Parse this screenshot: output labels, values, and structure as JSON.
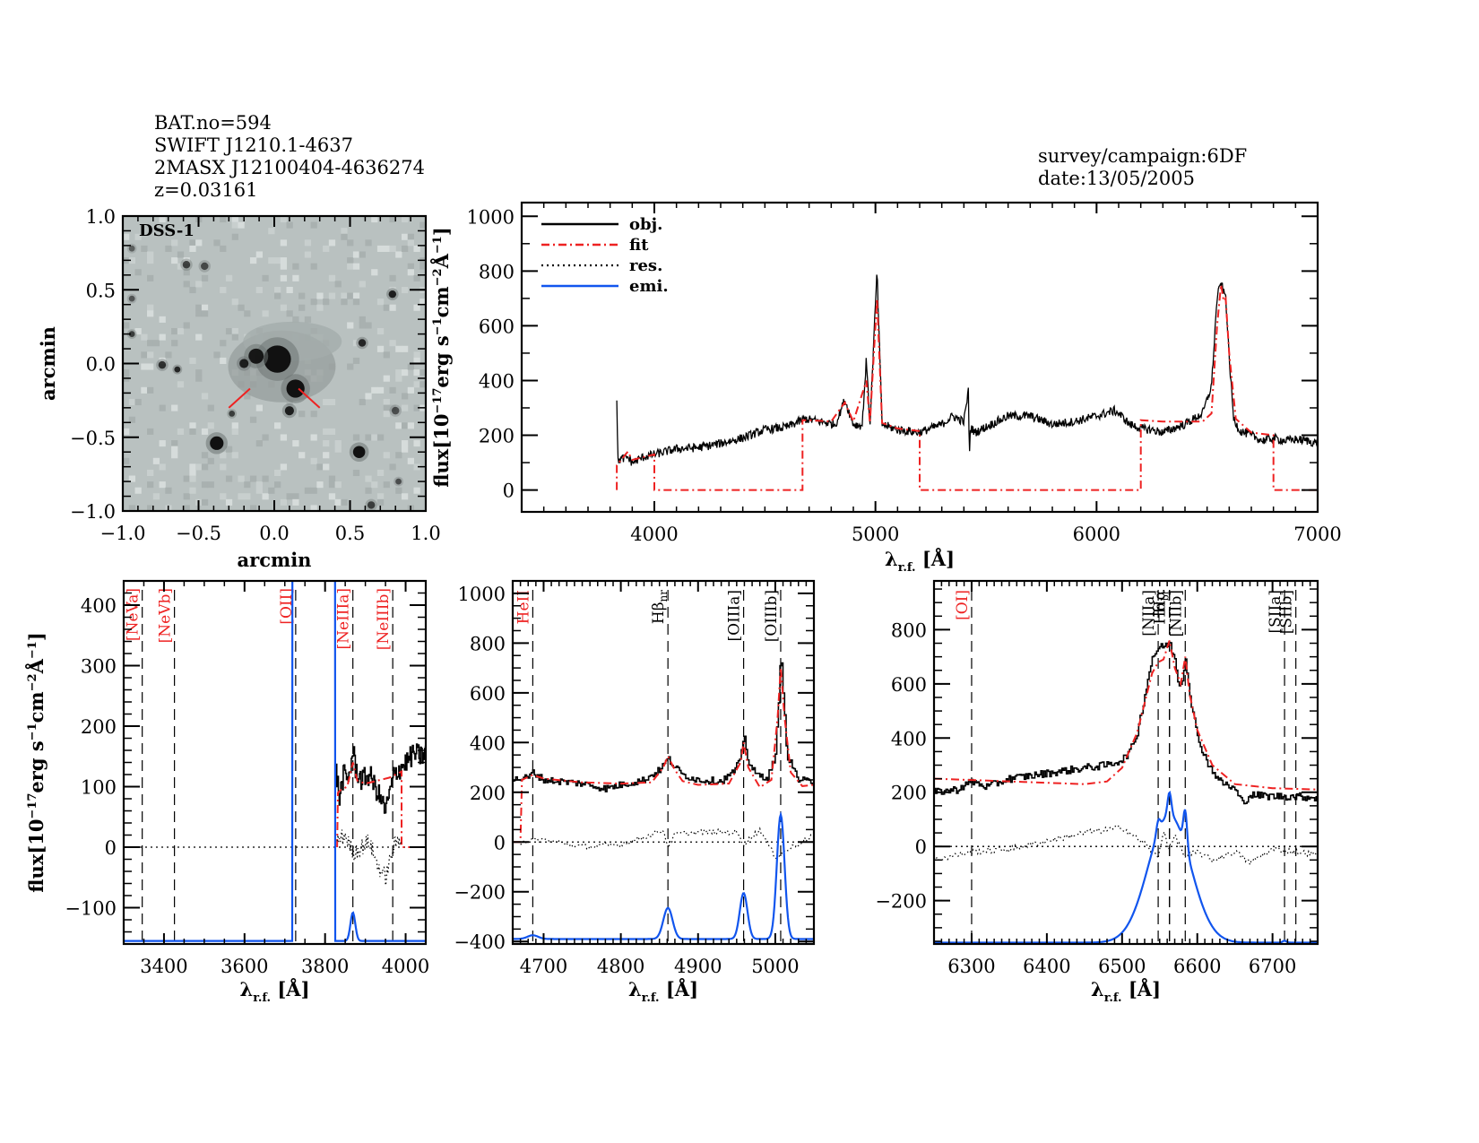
{
  "header": {
    "lines": [
      "BAT.no=594",
      "SWIFT J1210.1-4637",
      "2MASX J12100404-4636274",
      "z=0.03161"
    ],
    "survey": "survey/campaign:6DF",
    "date": "date:13/05/2005"
  },
  "colors": {
    "obj": "#000000",
    "fit": "#ee2222",
    "res": "#000000",
    "emi": "#1155ee",
    "image_bg": "#b9c1c0",
    "marker": "#ee2222"
  },
  "chart_data": [
    {
      "id": "dss-image",
      "type": "heatmap",
      "title": "DSS-1",
      "xlabel": "arcmin",
      "ylabel": "arcmin",
      "xlim": [
        -1.0,
        1.0
      ],
      "ylim": [
        -1.0,
        1.0
      ],
      "xticks": [
        "-1.0",
        "-0.5",
        "0.0",
        "0.5",
        "1.0"
      ],
      "yticks": [
        "-1.0",
        "-0.5",
        "0.0",
        "0.5",
        "1.0"
      ],
      "sources": [
        {
          "x": 0.02,
          "y": 0.03,
          "r": 0.09,
          "darkness": 1.0
        },
        {
          "x": -0.12,
          "y": 0.05,
          "r": 0.05,
          "darkness": 0.95
        },
        {
          "x": -0.2,
          "y": -0.0,
          "r": 0.03,
          "darkness": 0.9
        },
        {
          "x": 0.14,
          "y": -0.17,
          "r": 0.06,
          "darkness": 1.0
        },
        {
          "x": 0.1,
          "y": -0.32,
          "r": 0.03,
          "darkness": 0.9
        },
        {
          "x": -0.38,
          "y": -0.54,
          "r": 0.045,
          "darkness": 1.0
        },
        {
          "x": 0.56,
          "y": -0.6,
          "r": 0.04,
          "darkness": 1.0
        },
        {
          "x": 0.78,
          "y": 0.47,
          "r": 0.025,
          "darkness": 0.9
        },
        {
          "x": 0.58,
          "y": 0.14,
          "r": 0.025,
          "darkness": 0.85
        },
        {
          "x": -0.58,
          "y": 0.67,
          "r": 0.025,
          "darkness": 0.7
        },
        {
          "x": -0.46,
          "y": 0.66,
          "r": 0.025,
          "darkness": 0.65
        },
        {
          "x": -0.74,
          "y": -0.01,
          "r": 0.025,
          "darkness": 0.8
        },
        {
          "x": -0.64,
          "y": -0.04,
          "r": 0.02,
          "darkness": 0.85
        },
        {
          "x": -0.28,
          "y": -0.34,
          "r": 0.02,
          "darkness": 0.7
        },
        {
          "x": 0.8,
          "y": -0.32,
          "r": 0.025,
          "darkness": 0.6
        },
        {
          "x": -0.94,
          "y": 0.2,
          "r": 0.02,
          "darkness": 0.7
        },
        {
          "x": -0.94,
          "y": 0.44,
          "r": 0.02,
          "darkness": 0.55
        },
        {
          "x": -0.94,
          "y": 0.78,
          "r": 0.02,
          "darkness": 0.5
        },
        {
          "x": 0.64,
          "y": -0.96,
          "r": 0.025,
          "darkness": 0.7
        },
        {
          "x": 0.82,
          "y": -0.8,
          "r": 0.02,
          "darkness": 0.6
        }
      ],
      "markers": [
        {
          "x1": -0.3,
          "y1": -0.3,
          "x2": -0.16,
          "y2": -0.17
        },
        {
          "x1": 0.16,
          "y1": -0.17,
          "x2": 0.3,
          "y2": -0.3
        }
      ]
    },
    {
      "id": "full-spectrum",
      "type": "line",
      "title": "",
      "xlabel": "λ r.f. [Å]",
      "ylabel": "flux[10^-17 erg s^-1 cm^-2 Å^-1]",
      "xlim": [
        3400,
        7000
      ],
      "ylim": [
        -80,
        1050
      ],
      "xticks": [
        4000,
        5000,
        6000,
        7000
      ],
      "yticks": [
        0,
        200,
        400,
        600,
        800,
        1000
      ],
      "legend": {
        "position": "top-left",
        "entries": [
          "obj.",
          "fit",
          "res.",
          "emi."
        ]
      },
      "series": [
        {
          "name": "obj.",
          "style": "solid",
          "x": [
            3830,
            3835,
            3840,
            3880,
            3900,
            3950,
            4000,
            4100,
            4200,
            4300,
            4400,
            4500,
            4600,
            4680,
            4750,
            4820,
            4861,
            4900,
            4940,
            4959,
            4975,
            5007,
            5030,
            5100,
            5200,
            5300,
            5350,
            5400,
            5420,
            5425,
            5430,
            5450,
            5500,
            5600,
            5700,
            5800,
            5900,
            6000,
            6080,
            6100,
            6150,
            6200,
            6250,
            6300,
            6400,
            6480,
            6520,
            6545,
            6563,
            6575,
            6584,
            6600,
            6620,
            6650,
            6700,
            6750,
            6800,
            6850,
            6900,
            6950,
            7000
          ],
          "y": [
            340,
            100,
            110,
            120,
            100,
            120,
            130,
            150,
            155,
            170,
            190,
            220,
            230,
            260,
            250,
            240,
            330,
            240,
            235,
            480,
            235,
            800,
            240,
            220,
            210,
            240,
            270,
            250,
            360,
            130,
            230,
            210,
            230,
            270,
            270,
            240,
            250,
            270,
            290,
            280,
            240,
            225,
            220,
            210,
            240,
            280,
            380,
            700,
            760,
            720,
            710,
            480,
            260,
            215,
            200,
            180,
            190,
            180,
            185,
            180,
            170
          ]
        },
        {
          "name": "fit",
          "style": "dashdot",
          "x": [
            3830,
            3830,
            3840,
            3880,
            3900,
            4000,
            4000,
            4670,
            4670,
            4700,
            4800,
            4861,
            4900,
            4959,
            4975,
            5007,
            5030,
            5100,
            5200,
            5200,
            6200,
            6200,
            6300,
            6400,
            6480,
            6520,
            6545,
            6563,
            6575,
            6584,
            6600,
            6630,
            6700,
            6800,
            6800,
            7000
          ],
          "y": [
            0,
            90,
            100,
            140,
            110,
            130,
            0,
            0,
            255,
            255,
            250,
            320,
            250,
            400,
            245,
            700,
            245,
            225,
            215,
            0,
            0,
            255,
            250,
            250,
            250,
            280,
            600,
            750,
            690,
            700,
            500,
            260,
            210,
            200,
            0,
            0
          ]
        },
        {
          "name": "res.",
          "style": "dotted",
          "x": [],
          "y": []
        },
        {
          "name": "emi.",
          "style": "solid",
          "x": [],
          "y": []
        }
      ]
    },
    {
      "id": "zoom-oii",
      "type": "line",
      "xlabel": "λ r.f. [Å]",
      "ylabel": "flux[10^-17 erg s^-1 cm^-2 Å^-1]",
      "xlim": [
        3300,
        4050
      ],
      "ylim": [
        -160,
        440
      ],
      "xticks": [
        3400,
        3600,
        3800,
        4000
      ],
      "yticks": [
        -100,
        0,
        100,
        200,
        300,
        400
      ],
      "lines": [
        {
          "label": "[NeVa]",
          "x": 3346,
          "color": "red"
        },
        {
          "label": "[NeVb]",
          "x": 3426,
          "color": "red"
        },
        {
          "label": "[OII]",
          "x": 3727,
          "color": "red"
        },
        {
          "label": "[NeIIIa]",
          "x": 3869,
          "color": "red"
        },
        {
          "label": "[NeIIIb]",
          "x": 3968,
          "color": "red"
        }
      ],
      "series": [
        {
          "name": "obj.",
          "x": [
            3827,
            3835,
            3845,
            3855,
            3865,
            3869,
            3875,
            3890,
            3910,
            3930,
            3950,
            3970,
            3985,
            4000,
            4020,
            4040,
            4050
          ],
          "y": [
            125,
            80,
            120,
            110,
            140,
            160,
            130,
            110,
            120,
            90,
            60,
            120,
            130,
            140,
            155,
            150,
            160
          ]
        },
        {
          "name": "fit",
          "x": [
            3830,
            3832,
            3840,
            3855,
            3869,
            3880,
            3900,
            3930,
            3960,
            3990,
            3990,
            4050
          ],
          "y": [
            0,
            90,
            95,
            100,
            140,
            110,
            105,
            110,
            115,
            125,
            0,
            0
          ]
        },
        {
          "name": "res.",
          "x": [
            3830,
            3850,
            3870,
            3890,
            3910,
            3930,
            3950,
            3970,
            3990
          ],
          "y": [
            10,
            20,
            -10,
            0,
            10,
            -30,
            -50,
            0,
            20
          ]
        },
        {
          "name": "emi.",
          "baseline": -155,
          "components": [
            {
              "center": 3757,
              "peak": 3000,
              "sigma": 45,
              "left": 3720,
              "right": 3825
            },
            {
              "center": 3869,
              "peak": -108,
              "sigma": 6
            }
          ]
        }
      ]
    },
    {
      "id": "zoom-hbeta",
      "type": "line",
      "xlabel": "λ r.f. [Å]",
      "ylabel": "",
      "xlim": [
        4660,
        5050
      ],
      "ylim": [
        -410,
        1050
      ],
      "xticks": [
        4700,
        4800,
        4900,
        5000
      ],
      "yticks": [
        -400,
        -200,
        0,
        200,
        400,
        600,
        800,
        1000
      ],
      "lines": [
        {
          "label": "HeII",
          "x": 4686,
          "color": "red"
        },
        {
          "label": "Hβnr",
          "x": 4861,
          "color": "black"
        },
        {
          "label": "[OIIIa]",
          "x": 4959,
          "color": "black"
        },
        {
          "label": "[OIIIb]",
          "x": 5007,
          "color": "black"
        }
      ],
      "series": [
        {
          "name": "obj.",
          "x": [
            4660,
            4680,
            4686,
            4700,
            4750,
            4780,
            4800,
            4830,
            4850,
            4861,
            4870,
            4880,
            4900,
            4930,
            4945,
            4955,
            4959,
            4965,
            4975,
            4990,
            5000,
            5005,
            5007,
            5010,
            5015,
            5030,
            5050
          ],
          "y": [
            250,
            260,
            280,
            250,
            235,
            215,
            230,
            250,
            290,
            335,
            300,
            270,
            250,
            245,
            280,
            330,
            440,
            320,
            270,
            260,
            350,
            600,
            800,
            600,
            350,
            250,
            240
          ]
        },
        {
          "name": "fit",
          "x": [
            4660,
            4670,
            4672,
            4686,
            4700,
            4750,
            4800,
            4840,
            4855,
            4861,
            4870,
            4880,
            4900,
            4940,
            4955,
            4959,
            4965,
            4980,
            4995,
            5003,
            5007,
            5012,
            5020,
            5035,
            5050
          ],
          "y": [
            0,
            0,
            250,
            270,
            255,
            240,
            235,
            240,
            300,
            345,
            290,
            245,
            230,
            235,
            320,
            400,
            300,
            220,
            250,
            500,
            700,
            500,
            280,
            225,
            230
          ]
        },
        {
          "name": "res.",
          "x": [
            4670,
            4700,
            4750,
            4800,
            4840,
            4855,
            4861,
            4870,
            4900,
            4950,
            4959,
            4980,
            5000,
            5050
          ],
          "y": [
            0,
            10,
            -20,
            -10,
            30,
            50,
            -20,
            30,
            40,
            40,
            -10,
            50,
            -60,
            30
          ]
        },
        {
          "name": "emi.",
          "baseline": -390,
          "components": [
            {
              "center": 4686,
              "peak": -375,
              "sigma": 7
            },
            {
              "center": 4861,
              "peak": -265,
              "sigma": 6
            },
            {
              "center": 4959,
              "peak": -205,
              "sigma": 5
            },
            {
              "center": 5007,
              "peak": 110,
              "sigma": 5
            }
          ]
        }
      ]
    },
    {
      "id": "zoom-halpha",
      "type": "line",
      "xlabel": "λ r.f. [Å]",
      "ylabel": "",
      "xlim": [
        6250,
        6760
      ],
      "ylim": [
        -360,
        980
      ],
      "xticks": [
        6300,
        6400,
        6500,
        6600,
        6700
      ],
      "yticks": [
        -200,
        0,
        200,
        400,
        600,
        800
      ],
      "lines": [
        {
          "label": "[OI]",
          "x": 6300,
          "color": "red"
        },
        {
          "label": "[NIIa]",
          "x": 6548,
          "color": "black"
        },
        {
          "label": "Hα",
          "x": 6563,
          "color": "black"
        },
        {
          "label": "Hαbr",
          "x": 6563,
          "color": "black"
        },
        {
          "label": "[NIIb]",
          "x": 6584,
          "color": "black"
        },
        {
          "label": "[SIIa]",
          "x": 6716,
          "color": "black"
        },
        {
          "label": "[SIIb]",
          "x": 6731,
          "color": "black"
        }
      ],
      "series": [
        {
          "name": "obj.",
          "x": [
            6250,
            6280,
            6300,
            6320,
            6350,
            6400,
            6450,
            6480,
            6500,
            6510,
            6520,
            6530,
            6540,
            6548,
            6555,
            6563,
            6570,
            6575,
            6580,
            6584,
            6590,
            6600,
            6615,
            6630,
            6650,
            6660,
            6670,
            6700,
            6730,
            6760
          ],
          "y": [
            200,
            210,
            240,
            220,
            250,
            270,
            290,
            300,
            320,
            350,
            420,
            560,
            700,
            730,
            740,
            750,
            690,
            600,
            610,
            700,
            560,
            400,
            300,
            240,
            210,
            160,
            190,
            185,
            185,
            180
          ]
        },
        {
          "name": "fit",
          "x": [
            6250,
            6300,
            6400,
            6450,
            6480,
            6500,
            6520,
            6540,
            6548,
            6555,
            6563,
            6570,
            6578,
            6584,
            6590,
            6600,
            6620,
            6650,
            6700,
            6760
          ],
          "y": [
            250,
            245,
            235,
            230,
            240,
            290,
            420,
            640,
            680,
            690,
            760,
            660,
            600,
            700,
            560,
            430,
            300,
            230,
            215,
            210
          ]
        },
        {
          "name": "res.",
          "x": [
            6250,
            6300,
            6350,
            6400,
            6450,
            6500,
            6530,
            6548,
            6555,
            6563,
            6570,
            6584,
            6600,
            6620,
            6650,
            6670,
            6700,
            6730,
            6760
          ],
          "y": [
            -50,
            -20,
            -10,
            20,
            50,
            70,
            10,
            -40,
            60,
            -10,
            40,
            -40,
            -20,
            -50,
            -20,
            -60,
            -10,
            -20,
            -30
          ]
        },
        {
          "name": "emi.",
          "baseline": -355,
          "components": [
            {
              "center": 6563,
              "peak": 115,
              "sigma": 28
            },
            {
              "center": 6548,
              "peak": -310,
              "sigma": 2.5
            },
            {
              "center": 6563,
              "peak": -270,
              "sigma": 2.5
            },
            {
              "center": 6584,
              "peak": -220,
              "sigma": 2.5
            },
            {
              "center": 6716,
              "peak": -348,
              "sigma": 2.5
            }
          ]
        }
      ]
    }
  ]
}
